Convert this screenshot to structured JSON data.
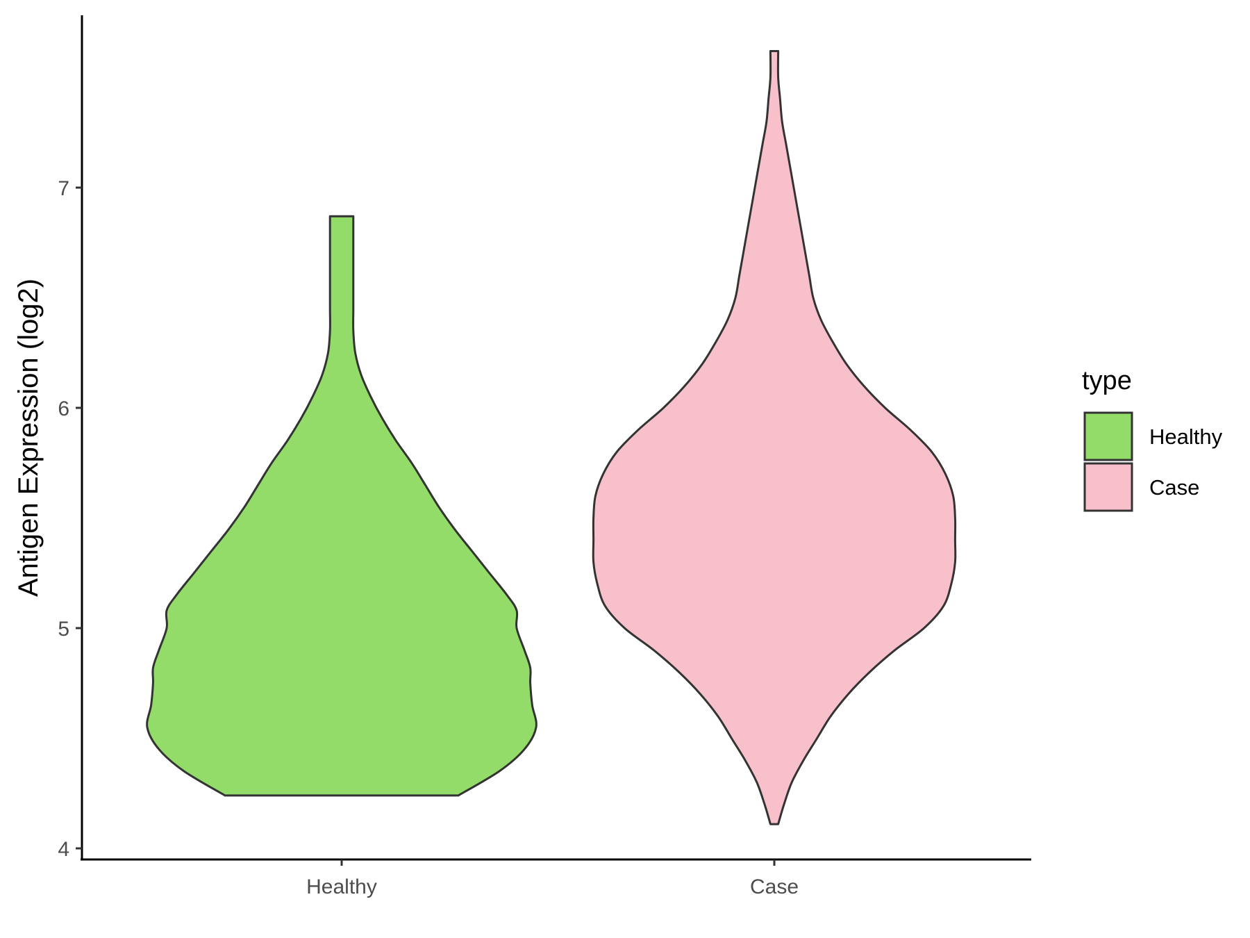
{
  "chart_data": {
    "type": "violin",
    "title": "",
    "xlabel": "",
    "ylabel": "Antigen Expression (log2)",
    "ylim": [
      3.95,
      7.8
    ],
    "yticks": [
      4,
      5,
      6,
      7
    ],
    "categories": [
      "Healthy",
      "Case"
    ],
    "legend": {
      "title": "type",
      "placement": "right",
      "entries": [
        {
          "label": "Healthy",
          "color": "#93DC6A"
        },
        {
          "label": "Case",
          "color": "#F8C0CB"
        }
      ]
    },
    "series": [
      {
        "category": "Healthy",
        "color": "#93DC6A",
        "min": 4.24,
        "max": 6.87,
        "density": [
          [
            4.24,
            0.6
          ],
          [
            4.35,
            0.81
          ],
          [
            4.45,
            0.94
          ],
          [
            4.55,
            1.0
          ],
          [
            4.65,
            0.98
          ],
          [
            4.75,
            0.97
          ],
          [
            4.82,
            0.97
          ],
          [
            4.9,
            0.94
          ],
          [
            5.0,
            0.9
          ],
          [
            5.08,
            0.9
          ],
          [
            5.15,
            0.85
          ],
          [
            5.25,
            0.76
          ],
          [
            5.35,
            0.67
          ],
          [
            5.45,
            0.58
          ],
          [
            5.55,
            0.5
          ],
          [
            5.65,
            0.43
          ],
          [
            5.75,
            0.36
          ],
          [
            5.85,
            0.28
          ],
          [
            5.95,
            0.21
          ],
          [
            6.05,
            0.15
          ],
          [
            6.15,
            0.1
          ],
          [
            6.25,
            0.07
          ],
          [
            6.35,
            0.06
          ],
          [
            6.45,
            0.06
          ],
          [
            6.55,
            0.06
          ],
          [
            6.65,
            0.06
          ],
          [
            6.75,
            0.06
          ],
          [
            6.87,
            0.06
          ]
        ]
      },
      {
        "category": "Case",
        "color": "#F8C0CB",
        "min": 4.11,
        "max": 7.62,
        "density": [
          [
            4.11,
            0.02
          ],
          [
            4.2,
            0.05
          ],
          [
            4.3,
            0.09
          ],
          [
            4.4,
            0.15
          ],
          [
            4.5,
            0.22
          ],
          [
            4.6,
            0.29
          ],
          [
            4.7,
            0.38
          ],
          [
            4.8,
            0.49
          ],
          [
            4.9,
            0.62
          ],
          [
            5.0,
            0.77
          ],
          [
            5.1,
            0.87
          ],
          [
            5.2,
            0.91
          ],
          [
            5.3,
            0.93
          ],
          [
            5.4,
            0.93
          ],
          [
            5.5,
            0.93
          ],
          [
            5.6,
            0.92
          ],
          [
            5.7,
            0.88
          ],
          [
            5.8,
            0.81
          ],
          [
            5.9,
            0.7
          ],
          [
            6.0,
            0.57
          ],
          [
            6.1,
            0.46
          ],
          [
            6.2,
            0.37
          ],
          [
            6.3,
            0.3
          ],
          [
            6.4,
            0.24
          ],
          [
            6.5,
            0.2
          ],
          [
            6.6,
            0.18
          ],
          [
            6.7,
            0.16
          ],
          [
            6.8,
            0.14
          ],
          [
            6.9,
            0.12
          ],
          [
            7.0,
            0.1
          ],
          [
            7.1,
            0.08
          ],
          [
            7.2,
            0.06
          ],
          [
            7.3,
            0.04
          ],
          [
            7.4,
            0.03
          ],
          [
            7.5,
            0.02
          ],
          [
            7.62,
            0.02
          ]
        ]
      }
    ],
    "grid": false
  }
}
